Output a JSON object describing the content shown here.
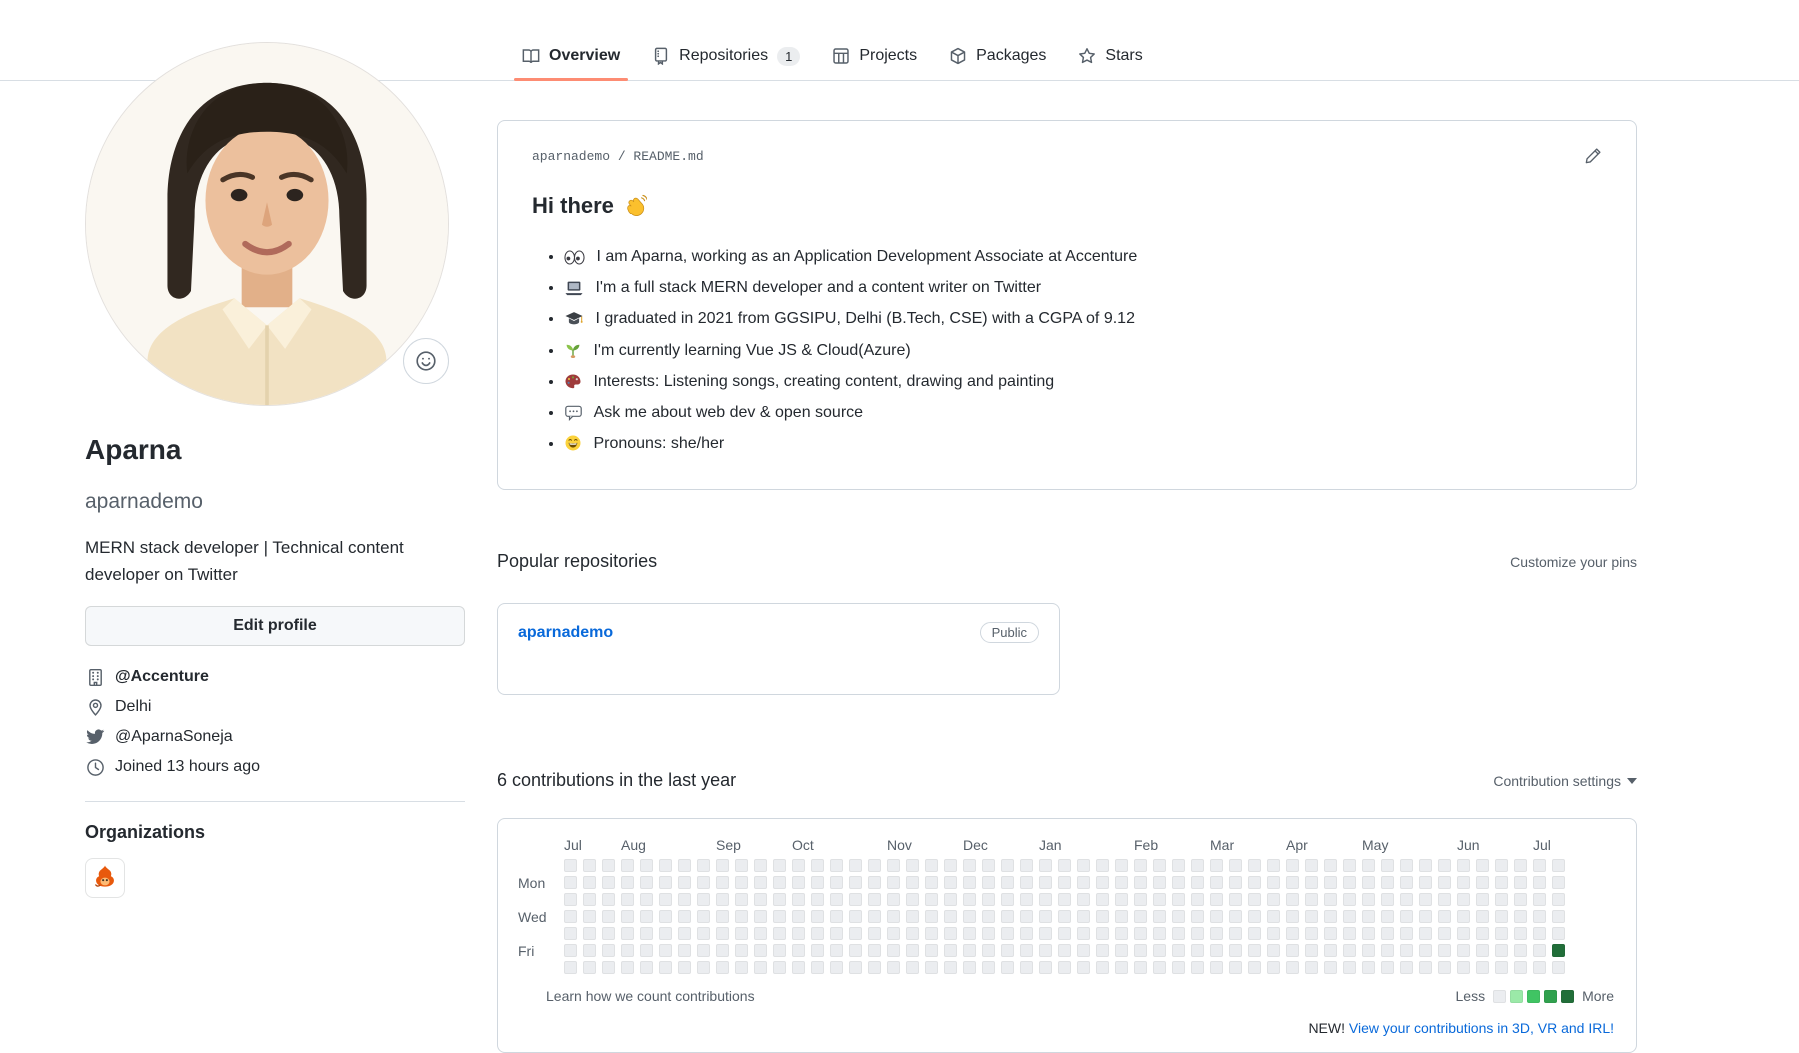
{
  "tabs": {
    "items": [
      {
        "label": "Overview",
        "active": true
      },
      {
        "label": "Repositories",
        "count": "1",
        "active": false
      },
      {
        "label": "Projects",
        "active": false
      },
      {
        "label": "Packages",
        "active": false
      },
      {
        "label": "Stars",
        "active": false
      }
    ],
    "active_underline_color": "#fd8c73"
  },
  "profile": {
    "name": "Aparna",
    "username": "aparnademo",
    "bio": "MERN stack developer | Technical content developer on Twitter",
    "edit_button_label": "Edit profile",
    "company": "@Accenture",
    "location": "Delhi",
    "twitter": "@AparnaSoneja",
    "joined": "Joined 13 hours ago",
    "organizations_title": "Organizations"
  },
  "readme": {
    "path": "aparnademo / README.md",
    "title": "Hi there",
    "bullets": [
      {
        "icon": "eyes-emoji",
        "text": "I am Aparna, working as an Application Development Associate at Accenture"
      },
      {
        "icon": "laptop-emoji",
        "text": "I'm a full stack MERN developer and a content writer on Twitter"
      },
      {
        "icon": "graduation-cap-emoji",
        "text": "I graduated in 2021 from GGSIPU, Delhi (B.Tech, CSE) with a CGPA of 9.12"
      },
      {
        "icon": "seedling-emoji",
        "text": "I'm currently learning Vue JS & Cloud(Azure)"
      },
      {
        "icon": "palette-emoji",
        "text": "Interests: Listening songs, creating content, drawing and painting"
      },
      {
        "icon": "speech-balloon-emoji",
        "text": "Ask me about web dev & open source"
      },
      {
        "icon": "grinning-emoji",
        "text": "Pronouns: she/her"
      }
    ]
  },
  "popular": {
    "title": "Popular repositories",
    "customize_link": "Customize your pins",
    "repos": [
      {
        "name": "aparnademo",
        "visibility": "Public"
      }
    ]
  },
  "contributions": {
    "title": "6 contributions in the last year",
    "settings_label": "Contribution settings",
    "learn_link": "Learn how we count contributions",
    "legend_less": "Less",
    "legend_more": "More",
    "new_label": "NEW!",
    "new_link": "View your contributions in 3D, VR and IRL!",
    "months": [
      {
        "label": "Jul",
        "col": 0
      },
      {
        "label": "Aug",
        "col": 3
      },
      {
        "label": "Sep",
        "col": 8
      },
      {
        "label": "Oct",
        "col": 12
      },
      {
        "label": "Nov",
        "col": 17
      },
      {
        "label": "Dec",
        "col": 21
      },
      {
        "label": "Jan",
        "col": 25
      },
      {
        "label": "Feb",
        "col": 30
      },
      {
        "label": "Mar",
        "col": 34
      },
      {
        "label": "Apr",
        "col": 38
      },
      {
        "label": "May",
        "col": 42
      },
      {
        "label": "Jun",
        "col": 47
      },
      {
        "label": "Jul",
        "col": 51
      }
    ],
    "day_labels": [
      {
        "label": "Mon",
        "row": 1
      },
      {
        "label": "Wed",
        "row": 3
      },
      {
        "label": "Fri",
        "row": 5
      }
    ],
    "grid": {
      "weeks": 53,
      "days": 7,
      "base_color": "#ebedf0",
      "highlight": {
        "week": 52,
        "day": 5,
        "color": "#216e39"
      }
    },
    "legend_colors": [
      "#ebedf0",
      "#9be9a8",
      "#40c463",
      "#30a14e",
      "#216e39"
    ]
  },
  "colors": {
    "accent_orange": "#fd8c73",
    "link_blue": "#0969da",
    "border": "#d0d7de",
    "text": "#24292f",
    "muted": "#57606a",
    "cell_base": "#ebedf0",
    "cell_green": "#216e39"
  }
}
